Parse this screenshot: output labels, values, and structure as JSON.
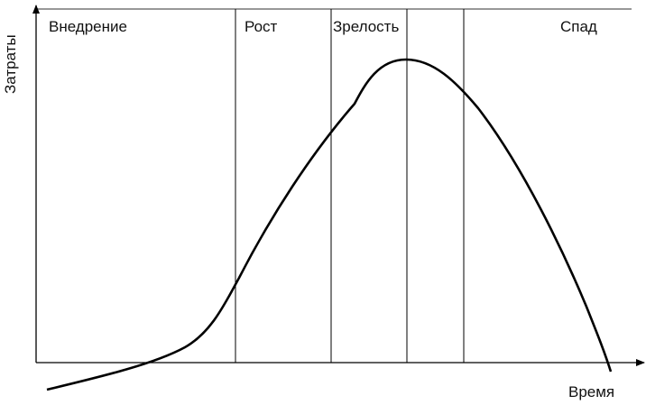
{
  "axes": {
    "y_label": "Затраты",
    "x_label": "Время"
  },
  "stages": [
    {
      "label": "Внедрение"
    },
    {
      "label": "Рост"
    },
    {
      "label": "Зрелость"
    },
    {
      "label": "Спад"
    }
  ],
  "colors": {
    "line": "#000000",
    "top_border": "#777777"
  }
}
